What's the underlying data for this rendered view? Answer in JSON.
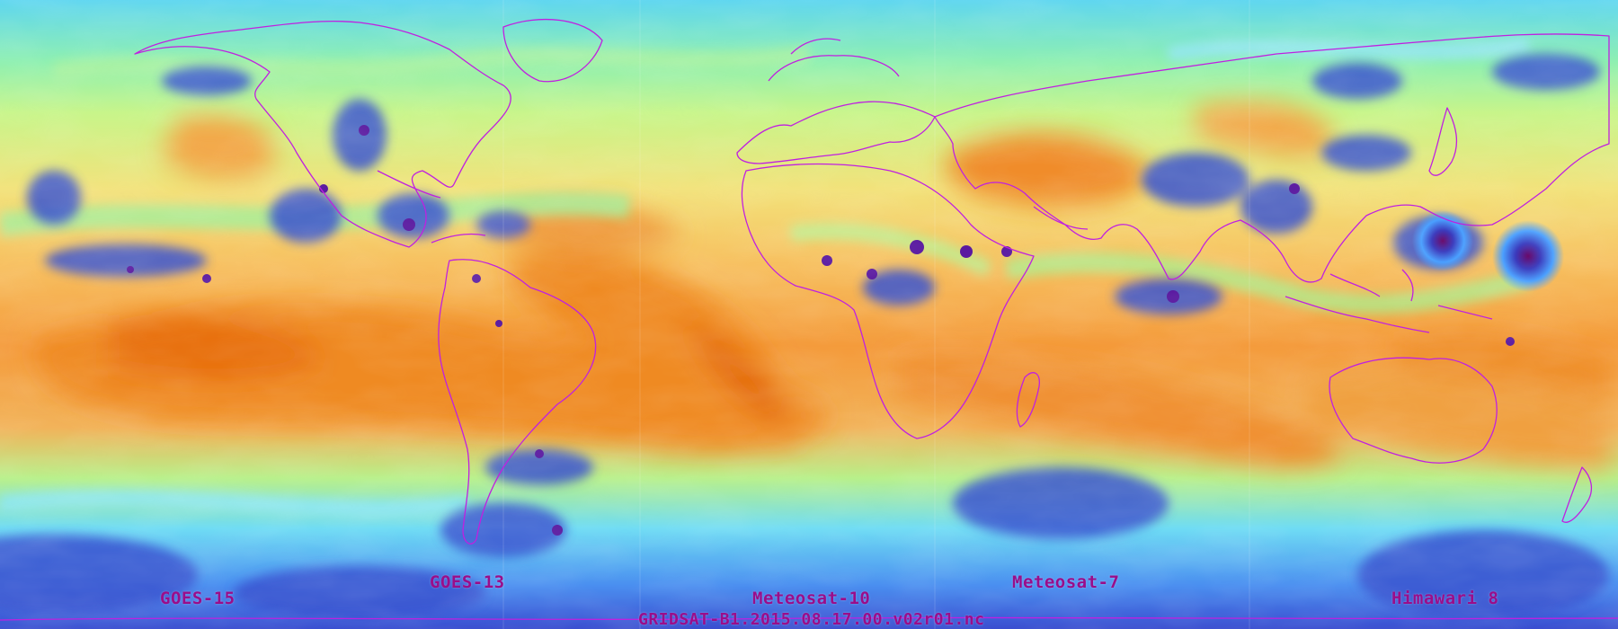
{
  "satellites": {
    "goes15": "GOES-15",
    "goes13": "GOES-13",
    "meteosat10": "Meteosat-10",
    "meteosat7": "Meteosat-7",
    "himawari8": "Himawari 8"
  },
  "file_name": "GRIDSAT-B1.2015.08.17.00.v02r01.nc",
  "colors": {
    "label": "#9a0d8a",
    "coastline": "#c020e0",
    "dry": "#e8780a",
    "moist": "#4ac8ff",
    "cloud": "#3b3bbd",
    "cold_cloud": "#6a0a6a"
  }
}
